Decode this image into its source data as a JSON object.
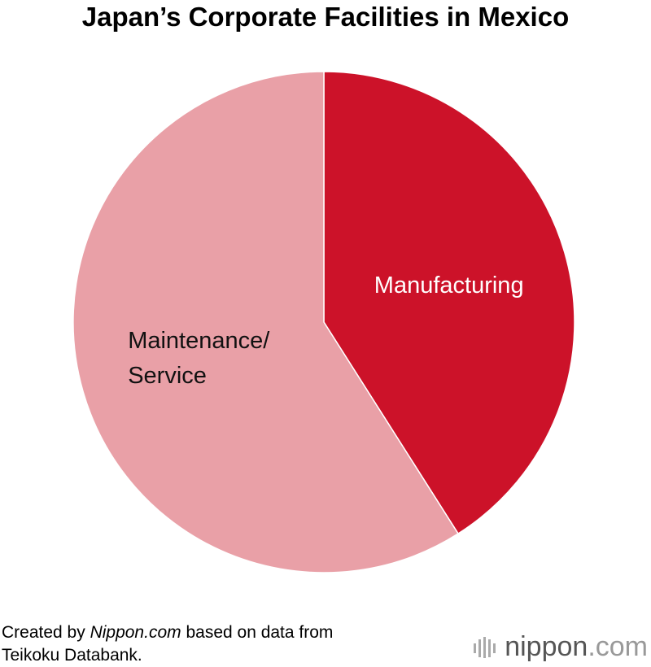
{
  "chart_data": {
    "type": "pie",
    "title": "Japan’s Corporate Facilities in Mexico",
    "categories": [
      "Manufacturing",
      "Maintenance/\nService"
    ],
    "values": [
      41,
      59
    ],
    "colors": [
      "#cc1229",
      "#e9a0a7"
    ],
    "label_colors": [
      "#ffffff",
      "#111111"
    ],
    "source": [
      "Created by ",
      "Nippon.com",
      " based on data from\nTeikoku Databank."
    ],
    "logo": [
      "nippon",
      ".com"
    ]
  }
}
